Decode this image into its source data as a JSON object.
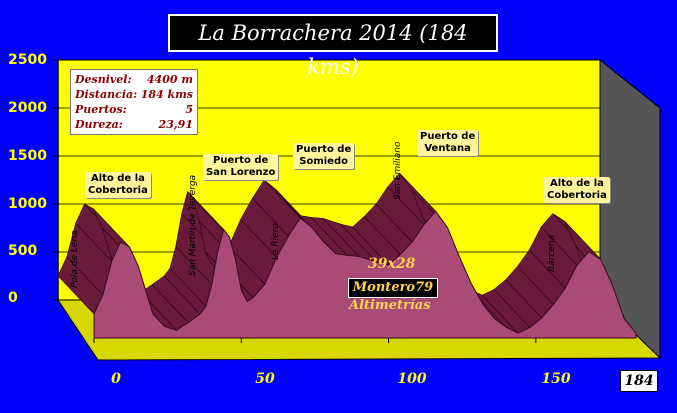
{
  "chart_data": {
    "type": "area",
    "title": "La Borrachera 2014 (184 kms)",
    "x_ticks": [
      0,
      50,
      100,
      150
    ],
    "x_end": 184,
    "y_ticks": [
      0,
      500,
      1000,
      1500,
      2000,
      2500
    ],
    "xlim": [
      0,
      184
    ],
    "ylim": [
      0,
      2500
    ],
    "profile": [
      [
        0,
        250
      ],
      [
        3,
        450
      ],
      [
        6,
        800
      ],
      [
        9,
        1000
      ],
      [
        12,
        950
      ],
      [
        15,
        750
      ],
      [
        18,
        450
      ],
      [
        20,
        250
      ],
      [
        24,
        120
      ],
      [
        28,
        80
      ],
      [
        32,
        160
      ],
      [
        36,
        250
      ],
      [
        38,
        330
      ],
      [
        40,
        560
      ],
      [
        42,
        900
      ],
      [
        44,
        1130
      ],
      [
        46,
        1050
      ],
      [
        48,
        820
      ],
      [
        50,
        500
      ],
      [
        52,
        380
      ],
      [
        54,
        420
      ],
      [
        58,
        560
      ],
      [
        62,
        840
      ],
      [
        66,
        1060
      ],
      [
        70,
        1250
      ],
      [
        74,
        1150
      ],
      [
        78,
        1000
      ],
      [
        82,
        880
      ],
      [
        86,
        860
      ],
      [
        90,
        850
      ],
      [
        96,
        790
      ],
      [
        100,
        760
      ],
      [
        104,
        870
      ],
      [
        108,
        1000
      ],
      [
        112,
        1180
      ],
      [
        116,
        1320
      ],
      [
        120,
        1150
      ],
      [
        124,
        850
      ],
      [
        128,
        570
      ],
      [
        132,
        350
      ],
      [
        136,
        200
      ],
      [
        140,
        110
      ],
      [
        144,
        50
      ],
      [
        148,
        110
      ],
      [
        152,
        210
      ],
      [
        156,
        350
      ],
      [
        160,
        520
      ],
      [
        164,
        760
      ],
      [
        168,
        900
      ],
      [
        172,
        820
      ],
      [
        176,
        550
      ],
      [
        180,
        200
      ],
      [
        184,
        50
      ]
    ],
    "grid": true
  },
  "stats": [
    {
      "label": "Desnivel:",
      "value": "4400 m"
    },
    {
      "label": "Distancia:",
      "value": "184 kms"
    },
    {
      "label": "Puertos:",
      "value": "5"
    },
    {
      "label": "Dureza:",
      "value": "23,91"
    }
  ],
  "peaks": [
    {
      "line1": "Alto de la",
      "line2": "Cobertoria"
    },
    {
      "line1": "Puerto de",
      "line2": "San Lorenzo"
    },
    {
      "line1": "Puerto de",
      "line2": "Somiedo"
    },
    {
      "line1": "Puerto de",
      "line2": "Ventana"
    },
    {
      "line1": "Alto de la",
      "line2": "Cobertoria"
    }
  ],
  "places": [
    "Pola de Lena",
    "San Martín de Teverga",
    "La Riera",
    "San Emiliano",
    "Bárcena"
  ],
  "credits": {
    "line1": "39x28",
    "line2": "Montero79",
    "line3": "Altimetrías"
  },
  "colors": {
    "profile": "#a94a77",
    "ridge": "#6a1a3a",
    "plane": "#ffff00",
    "floor": "#d8d800",
    "background": "#0000ff"
  }
}
